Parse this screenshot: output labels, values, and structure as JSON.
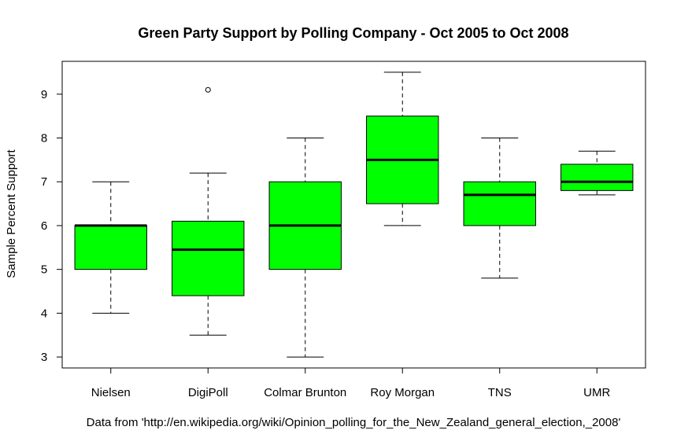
{
  "chart_data": {
    "type": "box",
    "title": "Green Party Support by Polling Company - Oct 2005 to Oct 2008",
    "xlabel": "",
    "ylabel": "Sample Percent Support",
    "ylim": [
      2.75,
      9.75
    ],
    "yticks": [
      3,
      4,
      5,
      6,
      7,
      8,
      9
    ],
    "grid": false,
    "box_color": "#00ff00",
    "categories": [
      "Nielsen",
      "DigiPoll",
      "Colmar Brunton",
      "Roy Morgan",
      "TNS",
      "UMR"
    ],
    "boxes": [
      {
        "category": "Nielsen",
        "whisker_low": 4.0,
        "q1": 5.0,
        "median": 6.0,
        "q3": 6.0,
        "whisker_high": 7.0,
        "outliers": []
      },
      {
        "category": "DigiPoll",
        "whisker_low": 3.5,
        "q1": 4.4,
        "median": 5.45,
        "q3": 6.1,
        "whisker_high": 7.2,
        "outliers": [
          9.1
        ]
      },
      {
        "category": "Colmar Brunton",
        "whisker_low": 3.0,
        "q1": 5.0,
        "median": 6.0,
        "q3": 7.0,
        "whisker_high": 8.0,
        "outliers": []
      },
      {
        "category": "Roy Morgan",
        "whisker_low": 6.0,
        "q1": 6.5,
        "median": 7.5,
        "q3": 8.5,
        "whisker_high": 9.5,
        "outliers": []
      },
      {
        "category": "TNS",
        "whisker_low": 4.8,
        "q1": 6.0,
        "median": 6.7,
        "q3": 7.0,
        "whisker_high": 8.0,
        "outliers": []
      },
      {
        "category": "UMR",
        "whisker_low": 6.7,
        "q1": 6.8,
        "median": 7.0,
        "q3": 7.4,
        "whisker_high": 7.7,
        "outliers": []
      }
    ],
    "caption": "Data from 'http://en.wikipedia.org/wiki/Opinion_polling_for_the_New_Zealand_general_election,_2008'"
  }
}
